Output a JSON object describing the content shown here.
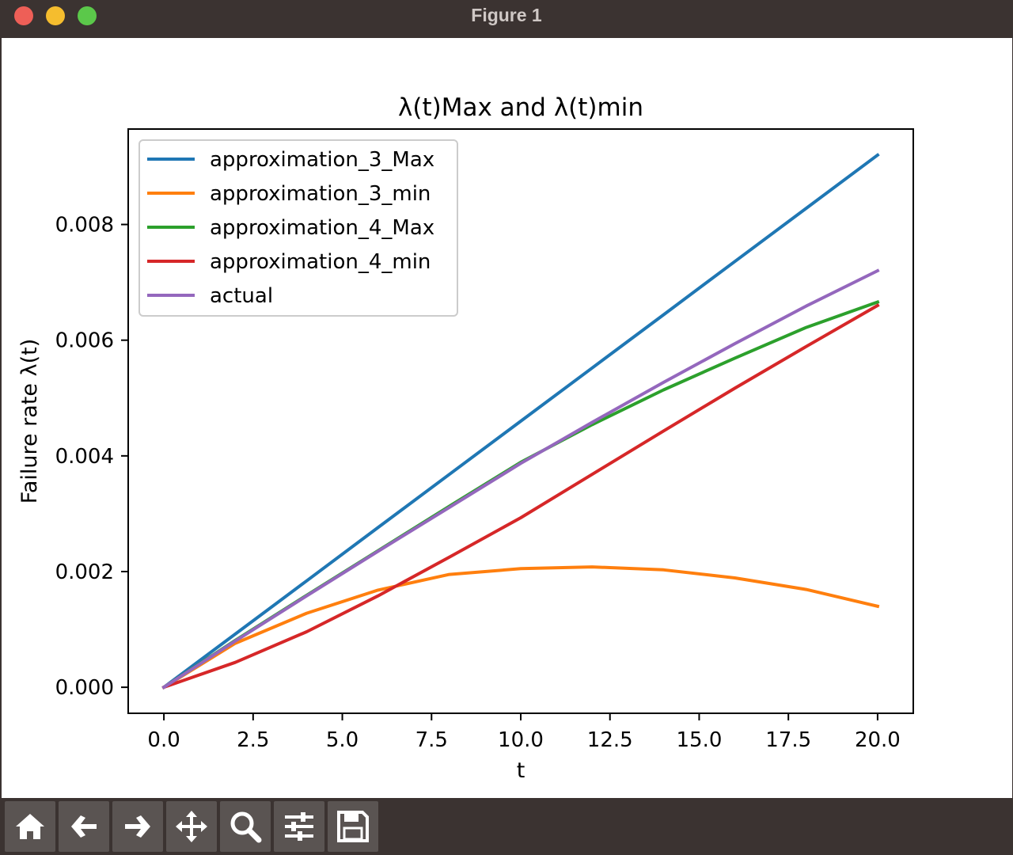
{
  "window": {
    "title": "Figure 1"
  },
  "toolbar": {
    "buttons": [
      {
        "icon": "home-icon"
      },
      {
        "icon": "back-arrow-icon"
      },
      {
        "icon": "forward-arrow-icon"
      },
      {
        "icon": "pan-move-icon"
      },
      {
        "icon": "zoom-magnifier-icon"
      },
      {
        "icon": "configure-subplots-icon"
      },
      {
        "icon": "save-floppy-icon"
      }
    ]
  },
  "chart_data": {
    "type": "line",
    "title": "λ(t)Max and λ(t)min",
    "xlabel": "t",
    "ylabel": "Failure rate λ(t)",
    "xlim": [
      -1.0,
      21.0
    ],
    "ylim": [
      -0.00045,
      0.00965
    ],
    "xticks": [
      "0.0",
      "2.5",
      "5.0",
      "7.5",
      "10.0",
      "12.5",
      "15.0",
      "17.5",
      "20.0"
    ],
    "xtick_values": [
      0,
      2.5,
      5,
      7.5,
      10,
      12.5,
      15,
      17.5,
      20
    ],
    "yticks": [
      "0.000",
      "0.002",
      "0.004",
      "0.006",
      "0.008"
    ],
    "ytick_values": [
      0,
      0.002,
      0.004,
      0.006,
      0.008
    ],
    "legend_position": "top-left",
    "grid": false,
    "x": [
      0,
      2,
      4,
      6,
      8,
      10,
      12,
      14,
      16,
      18,
      20
    ],
    "series": [
      {
        "name": "approximation_3_Max",
        "color": "#1f77b4",
        "values": [
          0,
          0.00092,
          0.00184,
          0.00276,
          0.00368,
          0.0046,
          0.00552,
          0.00644,
          0.00736,
          0.00828,
          0.0092
        ]
      },
      {
        "name": "approximation_3_min",
        "color": "#ff7f0e",
        "values": [
          0,
          0.00076,
          0.00128,
          0.00168,
          0.00195,
          0.00205,
          0.00208,
          0.00203,
          0.00189,
          0.00169,
          0.0014
        ]
      },
      {
        "name": "approximation_4_Max",
        "color": "#2ca02c",
        "values": [
          0,
          0.00081,
          0.00159,
          0.00236,
          0.00313,
          0.00389,
          0.00454,
          0.00514,
          0.00569,
          0.00622,
          0.00666
        ]
      },
      {
        "name": "approximation_4_min",
        "color": "#d62728",
        "values": [
          0,
          0.00043,
          0.00096,
          0.00158,
          0.00225,
          0.00293,
          0.00368,
          0.00443,
          0.00517,
          0.00589,
          0.0066
        ]
      },
      {
        "name": "actual",
        "color": "#9467bd",
        "values": [
          0,
          0.0008,
          0.00158,
          0.00235,
          0.00311,
          0.00387,
          0.00458,
          0.00527,
          0.00594,
          0.00659,
          0.0072
        ]
      }
    ]
  }
}
